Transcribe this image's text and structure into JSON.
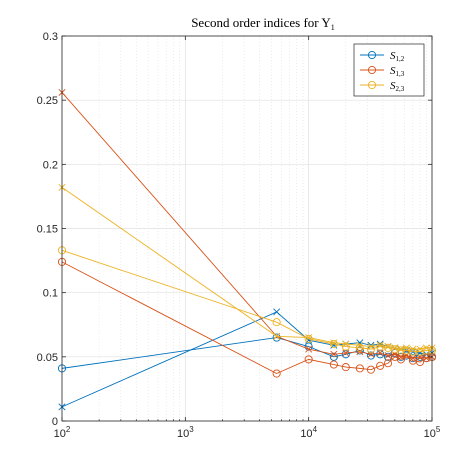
{
  "chart_data": {
    "type": "line",
    "title": "Second order indices for Y",
    "title_subscript": "1",
    "xscale": "log",
    "xlim": [
      100,
      100000
    ],
    "ylim": [
      0,
      0.3
    ],
    "xticks": [
      100,
      1000,
      10000,
      100000
    ],
    "xtick_labels": [
      {
        "base": "10",
        "exp": "2"
      },
      {
        "base": "10",
        "exp": "3"
      },
      {
        "base": "10",
        "exp": "4"
      },
      {
        "base": "10",
        "exp": "5"
      }
    ],
    "yticks": [
      0,
      0.05,
      0.1,
      0.15,
      0.2,
      0.25,
      0.3
    ],
    "ytick_labels": [
      "0",
      "0.05",
      "0.1",
      "0.15",
      "0.2",
      "0.25",
      "0.3"
    ],
    "grid": true,
    "legend_position": "top-right",
    "colors": {
      "s12": "#0072BD",
      "s13": "#D95319",
      "s23": "#EDB120",
      "grid": "#e0e0e0",
      "axis": "#262626"
    },
    "legend": [
      {
        "key": "s12",
        "base": "S",
        "sub": "1,2"
      },
      {
        "key": "s13",
        "base": "S",
        "sub": "1,3"
      },
      {
        "key": "s23",
        "base": "S",
        "sub": "2,3"
      }
    ],
    "series": [
      {
        "key": "s12",
        "marker": "circle",
        "x": [
          100,
          5500,
          10000,
          16000,
          20000,
          26000,
          32000,
          38000,
          44000,
          50000,
          56000,
          62000,
          70000,
          80000,
          90000,
          100000
        ],
        "y": [
          0.041,
          0.065,
          0.058,
          0.05,
          0.052,
          0.055,
          0.051,
          0.052,
          0.05,
          0.053,
          0.05,
          0.051,
          0.049,
          0.05,
          0.049,
          0.05
        ]
      },
      {
        "key": "s12",
        "marker": "cross",
        "x": [
          100,
          5500,
          10000,
          16000,
          20000,
          26000,
          32000,
          38000,
          44000,
          50000,
          56000,
          62000,
          70000,
          80000,
          90000,
          100000
        ],
        "y": [
          0.011,
          0.085,
          0.063,
          0.059,
          0.06,
          0.061,
          0.059,
          0.06,
          0.058,
          0.057,
          0.056,
          0.055,
          0.054,
          0.053,
          0.052,
          0.053
        ]
      },
      {
        "key": "s13",
        "marker": "circle",
        "x": [
          100,
          5500,
          10000,
          16000,
          20000,
          26000,
          32000,
          38000,
          44000,
          50000,
          56000,
          62000,
          70000,
          80000,
          90000,
          100000
        ],
        "y": [
          0.124,
          0.037,
          0.048,
          0.044,
          0.042,
          0.041,
          0.04,
          0.043,
          0.045,
          0.05,
          0.048,
          0.052,
          0.047,
          0.046,
          0.049,
          0.05
        ]
      },
      {
        "key": "s13",
        "marker": "cross",
        "x": [
          100,
          5500,
          10000,
          16000,
          20000,
          26000,
          32000,
          38000,
          44000,
          50000,
          56000,
          62000,
          70000,
          80000,
          90000,
          100000
        ],
        "y": [
          0.256,
          0.066,
          0.056,
          0.052,
          0.053,
          0.054,
          0.052,
          0.053,
          0.051,
          0.052,
          0.05,
          0.051,
          0.049,
          0.05,
          0.049,
          0.05
        ]
      },
      {
        "key": "s23",
        "marker": "circle",
        "x": [
          100,
          5500,
          10000,
          16000,
          20000,
          26000,
          32000,
          38000,
          44000,
          50000,
          56000,
          62000,
          70000,
          80000,
          90000,
          100000
        ],
        "y": [
          0.133,
          0.077,
          0.064,
          0.06,
          0.058,
          0.057,
          0.056,
          0.058,
          0.057,
          0.056,
          0.055,
          0.055,
          0.054,
          0.054,
          0.055,
          0.055
        ]
      },
      {
        "key": "s23",
        "marker": "cross",
        "x": [
          100,
          5500,
          10000,
          16000,
          20000,
          26000,
          32000,
          38000,
          44000,
          50000,
          56000,
          62000,
          70000,
          80000,
          90000,
          100000
        ],
        "y": [
          0.182,
          0.066,
          0.065,
          0.061,
          0.06,
          0.059,
          0.058,
          0.059,
          0.058,
          0.057,
          0.056,
          0.057,
          0.056,
          0.056,
          0.057,
          0.057
        ]
      }
    ]
  }
}
